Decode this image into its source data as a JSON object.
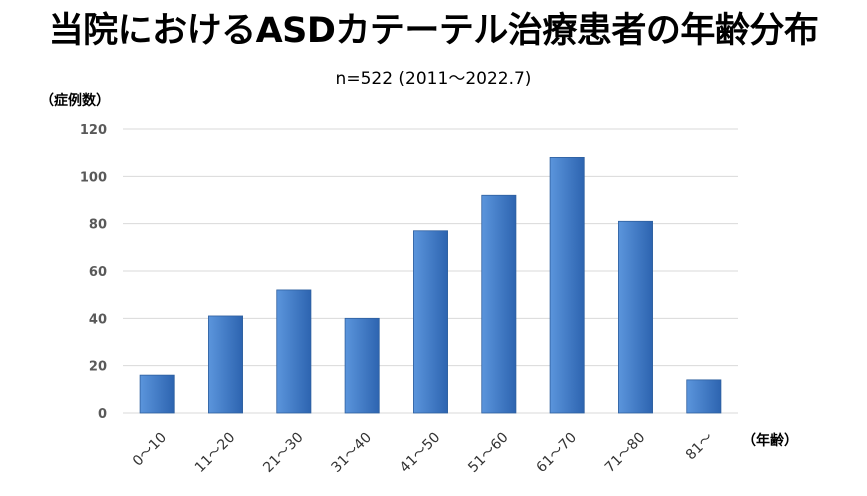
{
  "chart_data": {
    "type": "bar",
    "title": "当院におけるASDカテーテル治療患者の年齢分布",
    "subtitle": "n=522 (2011～2022.7)",
    "ylabel": "（症例数）",
    "xlabel": "（年齢）",
    "categories": [
      "0～10",
      "11～20",
      "21～30",
      "31～40",
      "41～50",
      "51～60",
      "61～70",
      "71～80",
      "81～"
    ],
    "values": [
      16,
      41,
      52,
      40,
      77,
      92,
      108,
      81,
      14
    ],
    "ylim": [
      0,
      120
    ],
    "yticks": [
      0,
      20,
      40,
      60,
      80,
      100,
      120
    ],
    "grid": true,
    "legend": "none",
    "colors": {
      "bar_light": "#5b95dc",
      "bar_dark": "#2d64b0",
      "grid": "#d9d9d9"
    }
  }
}
